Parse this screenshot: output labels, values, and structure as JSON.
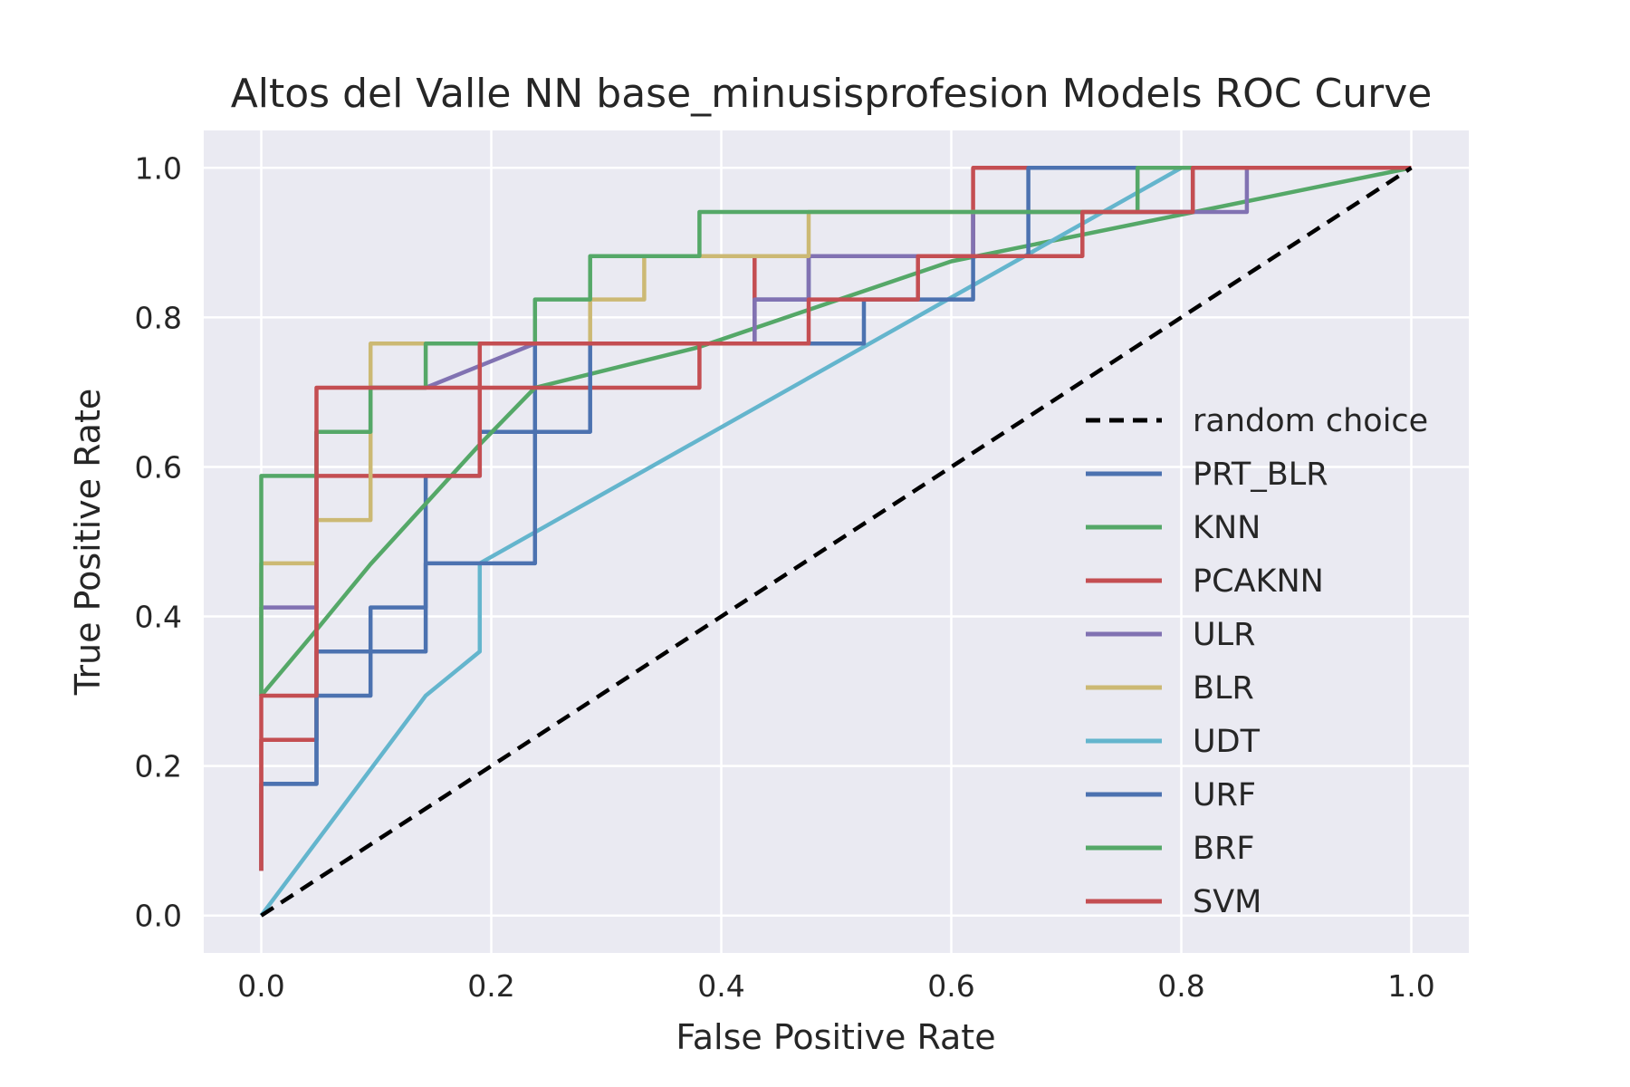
{
  "chart_data": {
    "type": "line",
    "title": "Altos del Valle NN base_minusisprofesion Models ROC Curve",
    "xlabel": "False Positive Rate",
    "ylabel": "True Positive Rate",
    "xlim": [
      -0.05,
      1.05
    ],
    "ylim": [
      -0.05,
      1.05
    ],
    "xticks": [
      "0.0",
      "0.2",
      "0.4",
      "0.6",
      "0.8",
      "1.0"
    ],
    "yticks": [
      "0.0",
      "0.2",
      "0.4",
      "0.6",
      "0.8",
      "1.0"
    ],
    "grid": true,
    "legend": "center-right",
    "series": [
      {
        "name": "random choice",
        "color": "#000000",
        "dash": true,
        "points": [
          [
            0,
            0
          ],
          [
            1,
            1
          ]
        ]
      },
      {
        "name": "PRT_BLR",
        "color": "#4c72b0",
        "points": [
          [
            0,
            0.06
          ],
          [
            0,
            0.176
          ],
          [
            0.048,
            0.176
          ],
          [
            0.048,
            0.353
          ],
          [
            0.143,
            0.353
          ],
          [
            0.143,
            0.588
          ],
          [
            0.19,
            0.588
          ],
          [
            0.19,
            0.647
          ],
          [
            0.238,
            0.647
          ],
          [
            0.238,
            0.765
          ],
          [
            0.429,
            0.765
          ],
          [
            0.429,
            0.824
          ],
          [
            0.476,
            0.824
          ],
          [
            0.476,
            0.882
          ],
          [
            0.619,
            0.882
          ],
          [
            0.619,
            0.941
          ],
          [
            0.81,
            0.941
          ],
          [
            0.81,
            1.0
          ],
          [
            1.0,
            1.0
          ]
        ]
      },
      {
        "name": "KNN",
        "color": "#55a868",
        "points": [
          [
            0,
            0.294
          ],
          [
            0.048,
            0.382
          ],
          [
            0.095,
            0.47
          ],
          [
            0.19,
            0.63
          ],
          [
            0.238,
            0.706
          ],
          [
            0.38,
            0.76
          ],
          [
            0.6,
            0.875
          ],
          [
            1.0,
            1.0
          ]
        ]
      },
      {
        "name": "PCAKNN",
        "color": "#c44e52",
        "points": [
          [
            0,
            0.06
          ],
          [
            0,
            0.235
          ],
          [
            0.048,
            0.235
          ],
          [
            0.048,
            0.588
          ],
          [
            0.19,
            0.588
          ],
          [
            0.19,
            0.706
          ],
          [
            0.381,
            0.706
          ],
          [
            0.381,
            0.765
          ],
          [
            0.429,
            0.765
          ],
          [
            0.429,
            0.882
          ],
          [
            0.619,
            0.882
          ],
          [
            0.619,
            1.0
          ],
          [
            1.0,
            1.0
          ]
        ]
      },
      {
        "name": "ULR",
        "color": "#8172b2",
        "points": [
          [
            0,
            0.294
          ],
          [
            0,
            0.412
          ],
          [
            0.048,
            0.412
          ],
          [
            0.048,
            0.647
          ],
          [
            0.095,
            0.647
          ],
          [
            0.095,
            0.706
          ],
          [
            0.143,
            0.706
          ],
          [
            0.238,
            0.765
          ],
          [
            0.429,
            0.765
          ],
          [
            0.429,
            0.824
          ],
          [
            0.476,
            0.824
          ],
          [
            0.476,
            0.882
          ],
          [
            0.619,
            0.882
          ],
          [
            0.619,
            0.941
          ],
          [
            0.857,
            0.941
          ],
          [
            0.857,
            1.0
          ],
          [
            1.0,
            1.0
          ]
        ]
      },
      {
        "name": "BLR",
        "color": "#ccb974",
        "points": [
          [
            0,
            0.294
          ],
          [
            0,
            0.471
          ],
          [
            0.048,
            0.471
          ],
          [
            0.048,
            0.529
          ],
          [
            0.095,
            0.529
          ],
          [
            0.095,
            0.765
          ],
          [
            0.286,
            0.765
          ],
          [
            0.286,
            0.824
          ],
          [
            0.333,
            0.824
          ],
          [
            0.333,
            0.882
          ],
          [
            0.476,
            0.882
          ],
          [
            0.476,
            0.941
          ],
          [
            0.762,
            0.941
          ],
          [
            0.762,
            1.0
          ],
          [
            1.0,
            1.0
          ]
        ]
      },
      {
        "name": "UDT",
        "color": "#64b5cd",
        "points": [
          [
            0,
            0
          ],
          [
            0.143,
            0.294
          ],
          [
            0.19,
            0.353
          ],
          [
            0.19,
            0.471
          ],
          [
            0.8,
            1.0
          ],
          [
            1.0,
            1.0
          ]
        ]
      },
      {
        "name": "URF",
        "color": "#4c72b0",
        "points": [
          [
            0,
            0.176
          ],
          [
            0.048,
            0.176
          ],
          [
            0.048,
            0.294
          ],
          [
            0.095,
            0.294
          ],
          [
            0.095,
            0.412
          ],
          [
            0.143,
            0.412
          ],
          [
            0.143,
            0.471
          ],
          [
            0.238,
            0.471
          ],
          [
            0.238,
            0.647
          ],
          [
            0.286,
            0.647
          ],
          [
            0.286,
            0.765
          ],
          [
            0.524,
            0.765
          ],
          [
            0.524,
            0.824
          ],
          [
            0.619,
            0.824
          ],
          [
            0.619,
            0.882
          ],
          [
            0.667,
            0.882
          ],
          [
            0.667,
            1.0
          ],
          [
            1.0,
            1.0
          ]
        ]
      },
      {
        "name": "BRF",
        "color": "#55a868",
        "points": [
          [
            0,
            0.294
          ],
          [
            0,
            0.588
          ],
          [
            0.048,
            0.588
          ],
          [
            0.048,
            0.647
          ],
          [
            0.095,
            0.647
          ],
          [
            0.095,
            0.706
          ],
          [
            0.143,
            0.706
          ],
          [
            0.143,
            0.765
          ],
          [
            0.238,
            0.765
          ],
          [
            0.238,
            0.824
          ],
          [
            0.286,
            0.824
          ],
          [
            0.286,
            0.882
          ],
          [
            0.381,
            0.882
          ],
          [
            0.381,
            0.941
          ],
          [
            0.762,
            0.941
          ],
          [
            0.762,
            1.0
          ],
          [
            1.0,
            1.0
          ]
        ]
      },
      {
        "name": "SVM",
        "color": "#c44e52",
        "points": [
          [
            0,
            0.06
          ],
          [
            0,
            0.294
          ],
          [
            0.048,
            0.294
          ],
          [
            0.048,
            0.706
          ],
          [
            0.19,
            0.706
          ],
          [
            0.19,
            0.765
          ],
          [
            0.286,
            0.765
          ],
          [
            0.381,
            0.765
          ],
          [
            0.381,
            0.765
          ],
          [
            0.476,
            0.765
          ],
          [
            0.476,
            0.824
          ],
          [
            0.571,
            0.824
          ],
          [
            0.571,
            0.882
          ],
          [
            0.714,
            0.882
          ],
          [
            0.714,
            0.941
          ],
          [
            0.81,
            0.941
          ],
          [
            0.81,
            1.0
          ],
          [
            1.0,
            1.0
          ]
        ]
      }
    ]
  }
}
